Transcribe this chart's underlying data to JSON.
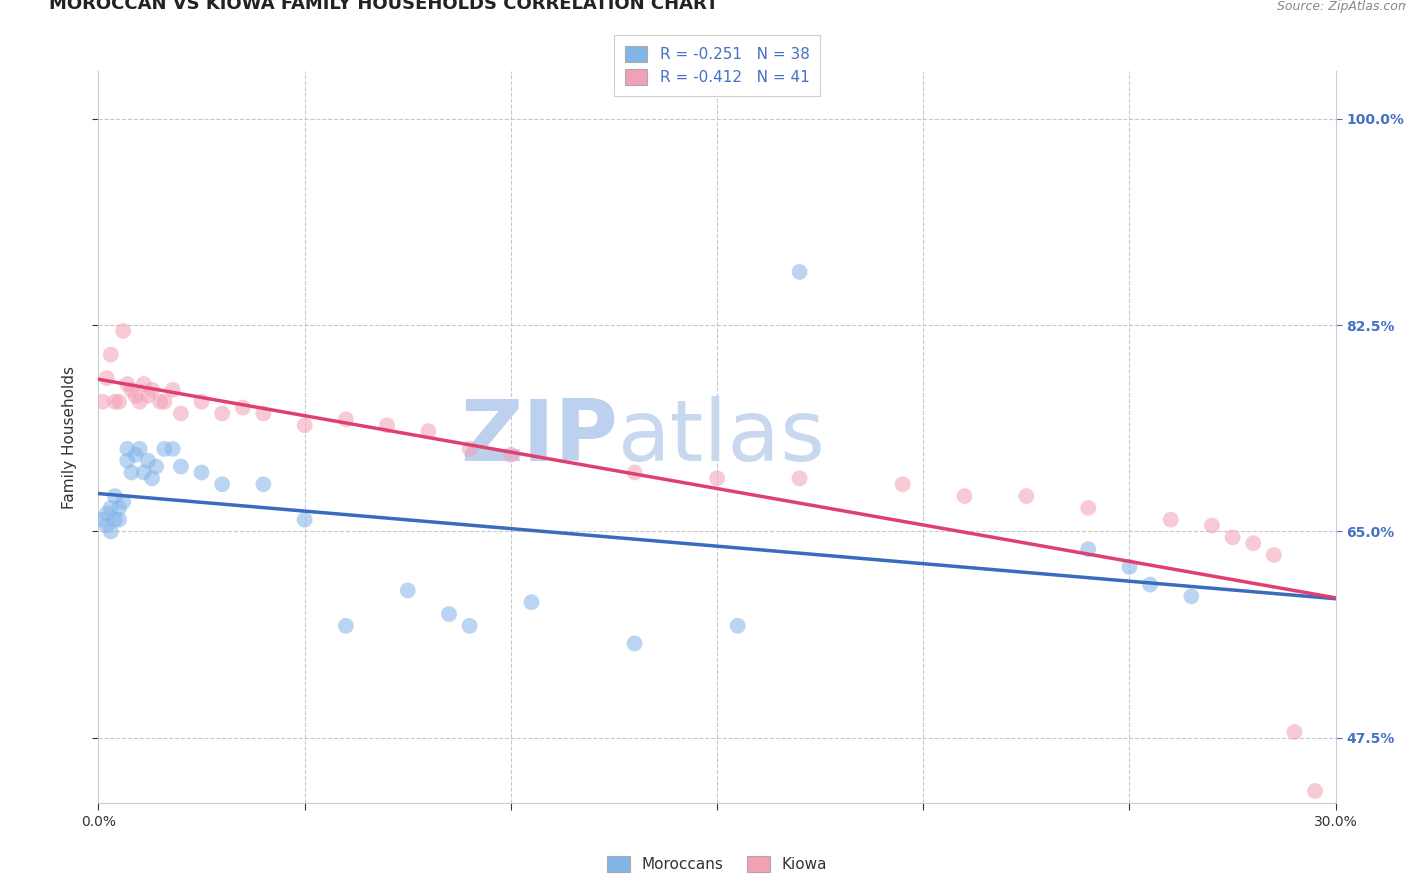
{
  "title": "MOROCCAN VS KIOWA FAMILY HOUSEHOLDS CORRELATION CHART",
  "source": "Source: ZipAtlas.com",
  "ylabel": "Family Households",
  "xlim": [
    0.0,
    0.3
  ],
  "ylim": [
    0.42,
    1.04
  ],
  "right_yticks": [
    0.475,
    0.65,
    0.825,
    1.0
  ],
  "right_yticklabels": [
    "47.5%",
    "65.0%",
    "82.5%",
    "100.0%"
  ],
  "xticks": [
    0.0,
    0.05,
    0.1,
    0.15,
    0.2,
    0.25,
    0.3
  ],
  "xtick_labels": [
    "0.0%",
    "",
    "",
    "",
    "",
    "",
    "30.0%"
  ],
  "blue_color": "#82B4E8",
  "pink_color": "#F2A0B5",
  "blue_line_color": "#3A6BBF",
  "pink_line_color": "#E04070",
  "watermark_zip_color": "#BDD0ED",
  "watermark_atlas_color": "#C8D8EF",
  "legend_R_blue": "R = -0.251",
  "legend_N_blue": "N = 38",
  "legend_R_pink": "R = -0.412",
  "legend_N_pink": "N = 41",
  "moroccan_x": [
    0.001,
    0.002,
    0.002,
    0.003,
    0.003,
    0.004,
    0.004,
    0.005,
    0.005,
    0.006,
    0.007,
    0.007,
    0.008,
    0.009,
    0.01,
    0.011,
    0.012,
    0.013,
    0.014,
    0.016,
    0.018,
    0.02,
    0.025,
    0.03,
    0.04,
    0.05,
    0.06,
    0.075,
    0.085,
    0.09,
    0.105,
    0.13,
    0.155,
    0.17,
    0.24,
    0.25,
    0.255,
    0.265
  ],
  "moroccan_y": [
    0.66,
    0.665,
    0.655,
    0.67,
    0.65,
    0.68,
    0.66,
    0.67,
    0.66,
    0.675,
    0.72,
    0.71,
    0.7,
    0.715,
    0.72,
    0.7,
    0.71,
    0.695,
    0.705,
    0.72,
    0.72,
    0.705,
    0.7,
    0.69,
    0.69,
    0.66,
    0.57,
    0.6,
    0.58,
    0.57,
    0.59,
    0.555,
    0.57,
    0.87,
    0.635,
    0.62,
    0.605,
    0.595
  ],
  "kiowa_x": [
    0.001,
    0.002,
    0.003,
    0.004,
    0.005,
    0.006,
    0.007,
    0.008,
    0.009,
    0.01,
    0.011,
    0.012,
    0.013,
    0.015,
    0.016,
    0.018,
    0.02,
    0.025,
    0.03,
    0.035,
    0.04,
    0.05,
    0.06,
    0.07,
    0.08,
    0.09,
    0.1,
    0.13,
    0.15,
    0.17,
    0.195,
    0.21,
    0.225,
    0.24,
    0.26,
    0.27,
    0.275,
    0.28,
    0.285,
    0.29,
    0.295
  ],
  "kiowa_y": [
    0.76,
    0.78,
    0.8,
    0.76,
    0.76,
    0.82,
    0.775,
    0.77,
    0.765,
    0.76,
    0.775,
    0.765,
    0.77,
    0.76,
    0.76,
    0.77,
    0.75,
    0.76,
    0.75,
    0.755,
    0.75,
    0.74,
    0.745,
    0.74,
    0.735,
    0.72,
    0.715,
    0.7,
    0.695,
    0.695,
    0.69,
    0.68,
    0.68,
    0.67,
    0.66,
    0.655,
    0.645,
    0.64,
    0.63,
    0.48,
    0.43
  ],
  "title_fontsize": 13,
  "axis_label_fontsize": 11,
  "tick_fontsize": 10,
  "marker_size": 130,
  "marker_alpha": 0.55,
  "background_color": "#FFFFFF",
  "grid_color": "#BBBBBB",
  "grid_alpha": 0.8
}
